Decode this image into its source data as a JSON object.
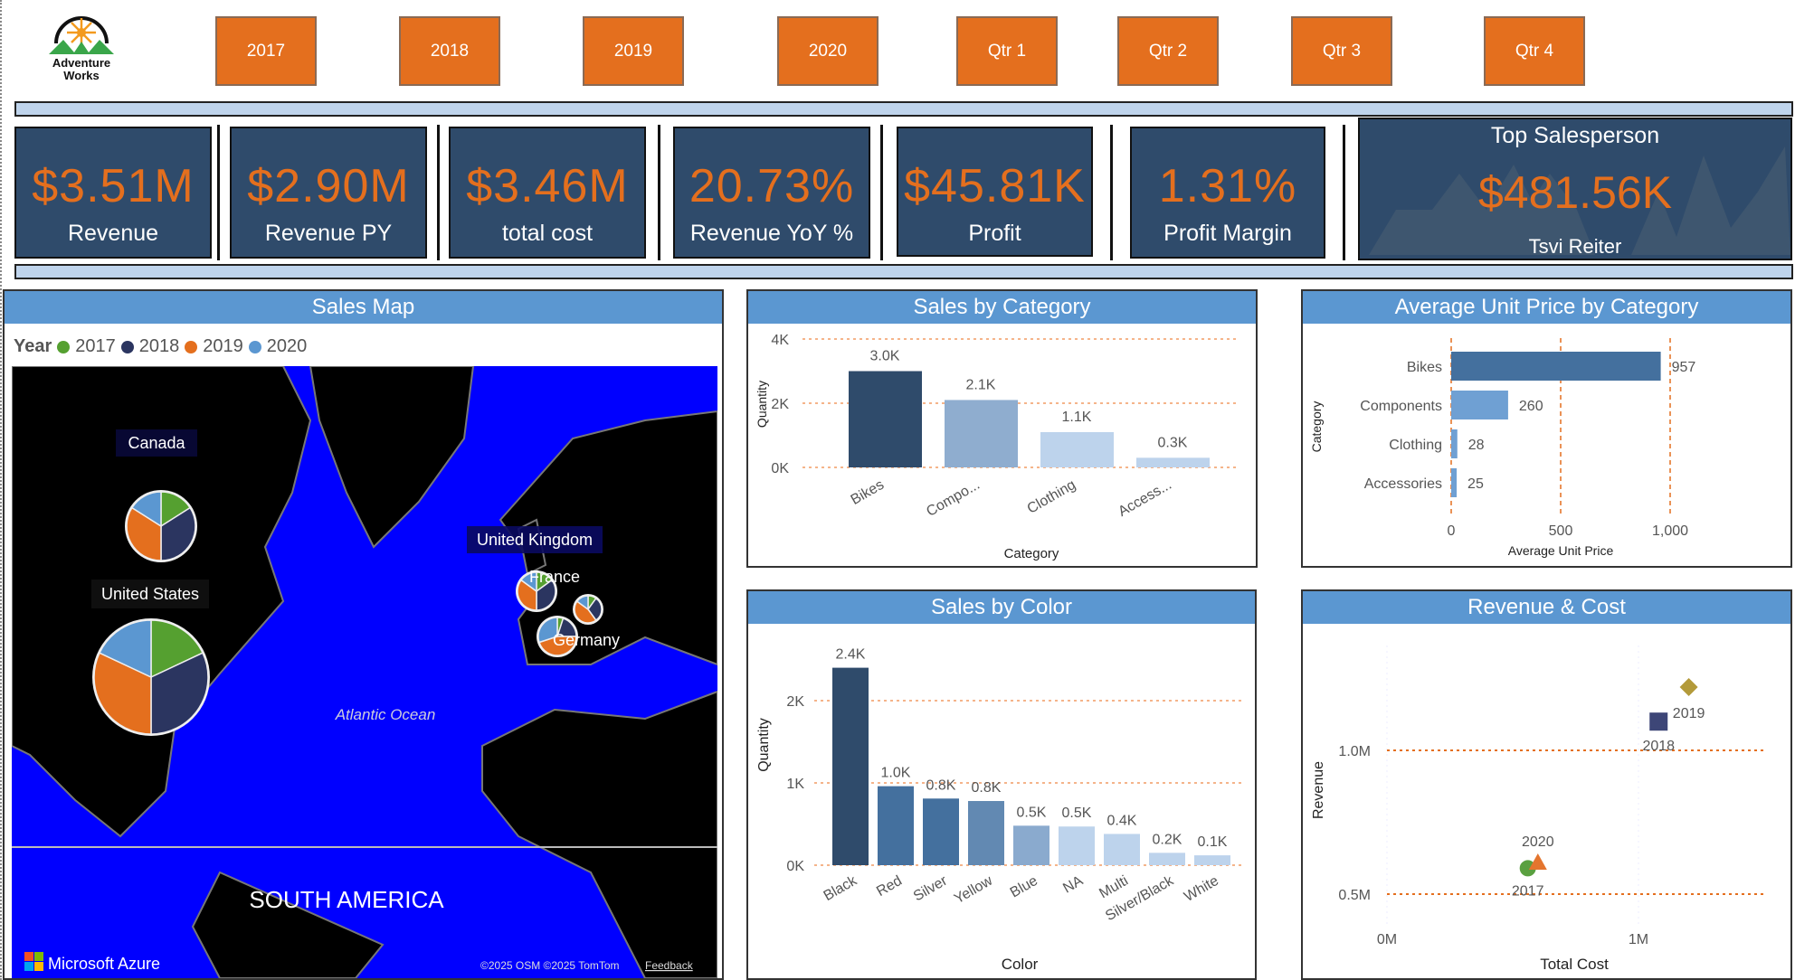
{
  "logo": {
    "line1": "Adventure",
    "line2": "Works"
  },
  "slicers": [
    "2017",
    "2018",
    "2019",
    "2020",
    "Qtr 1",
    "Qtr 2",
    "Qtr 3",
    "Qtr 4"
  ],
  "kpis": [
    {
      "value": "$3.51M",
      "label": "Revenue"
    },
    {
      "value": "$2.90M",
      "label": "Revenue PY"
    },
    {
      "value": "$3.46M",
      "label": "total cost"
    },
    {
      "value": "20.73%",
      "label": "Revenue YoY %"
    },
    {
      "value": "$45.81K",
      "label": "Profit"
    },
    {
      "value": "1.31%",
      "label": "Profit Margin"
    }
  ],
  "top_salesperson": {
    "title": "Top Salesperson",
    "value": "$481.56K",
    "name": "Tsvi Reiter"
  },
  "colors": {
    "accent": "#e46f1e",
    "kpi_bg": "#2f4b6b",
    "title_bar": "#5b97d1",
    "band": "#bfd4ec",
    "map_water": "#0000ff",
    "y2017": "#55a030",
    "y2018": "#2b3560",
    "y2019": "#e46f1e",
    "y2020": "#5b97d1"
  },
  "map": {
    "title": "Sales Map",
    "legend_title": "Year",
    "legend": [
      "2017",
      "2018",
      "2019",
      "2020"
    ],
    "labels": {
      "canada": "Canada",
      "us": "United States",
      "uk": "United Kingdom",
      "france": "France",
      "germany": "Germany",
      "ocean": "Atlantic Ocean",
      "continent": "SOUTH AMERICA"
    },
    "pies": [
      {
        "country": "United States",
        "shares": [
          0.18,
          0.32,
          0.32,
          0.18
        ]
      },
      {
        "country": "Canada",
        "shares": [
          0.16,
          0.34,
          0.34,
          0.16
        ]
      },
      {
        "country": "United Kingdom",
        "shares": [
          0.15,
          0.35,
          0.35,
          0.15
        ]
      },
      {
        "country": "France",
        "shares": [
          0.1,
          0.3,
          0.45,
          0.15
        ]
      },
      {
        "country": "Germany",
        "shares": [
          0.05,
          0.2,
          0.45,
          0.3
        ]
      }
    ],
    "brand": "Microsoft Azure",
    "attribution": "©2025 OSM  ©2025 TomTom",
    "feedback": "Feedback"
  },
  "chart_data": [
    {
      "type": "bar",
      "title": "Sales by Category",
      "xlabel": "Category",
      "ylabel": "Quantity",
      "categories": [
        "Bikes",
        "Compo...",
        "Clothing",
        "Access..."
      ],
      "values": [
        3000,
        2100,
        1100,
        300
      ],
      "data_labels": [
        "3.0K",
        "2.1K",
        "1.1K",
        "0.3K"
      ],
      "ylim": [
        0,
        4000
      ],
      "yticks": [
        "0K",
        "2K",
        "4K"
      ],
      "grid": true
    },
    {
      "type": "bar",
      "orientation": "horizontal",
      "title": "Average Unit Price by Category",
      "xlabel": "Average Unit Price",
      "ylabel": "Category",
      "categories": [
        "Bikes",
        "Components",
        "Clothing",
        "Accessories"
      ],
      "values": [
        957,
        260,
        28,
        25
      ],
      "data_labels": [
        "957",
        "260",
        "28",
        "25"
      ],
      "xlim": [
        0,
        1000
      ],
      "xticks": [
        "0",
        "500",
        "1,000"
      ],
      "grid": true
    },
    {
      "type": "bar",
      "title": "Sales by Color",
      "xlabel": "Color",
      "ylabel": "Quantity",
      "categories": [
        "Black",
        "Red",
        "Silver",
        "Yellow",
        "Blue",
        "NA",
        "Multi",
        "Silver/Black",
        "White"
      ],
      "values": [
        2400,
        960,
        810,
        780,
        480,
        470,
        380,
        150,
        120
      ],
      "data_labels": [
        "2.4K",
        "1.0K",
        "0.8K",
        "0.8K",
        "0.5K",
        "0.5K",
        "0.4K",
        "0.2K",
        "0.1K"
      ],
      "ylim": [
        0,
        2000
      ],
      "yticks": [
        "0K",
        "1K",
        "2K"
      ],
      "grid": true
    },
    {
      "type": "scatter",
      "title": "Revenue & Cost",
      "xlabel": "Total Cost",
      "ylabel": "Revenue",
      "xticks": [
        "0M",
        "1M"
      ],
      "yticks": [
        "0.5M",
        "1.0M"
      ],
      "points": [
        {
          "label": "2017",
          "x": 0.56,
          "y": 0.59,
          "shape": "circle",
          "color": "#5aa040"
        },
        {
          "label": "2018",
          "x": 1.08,
          "y": 1.1,
          "shape": "square",
          "color": "#3d4677"
        },
        {
          "label": "2019",
          "x": 1.2,
          "y": 1.22,
          "shape": "diamond",
          "color": "#b39a3a"
        },
        {
          "label": "2020",
          "x": 0.6,
          "y": 0.61,
          "shape": "triangle",
          "color": "#e4752e"
        }
      ],
      "grid": true
    }
  ]
}
